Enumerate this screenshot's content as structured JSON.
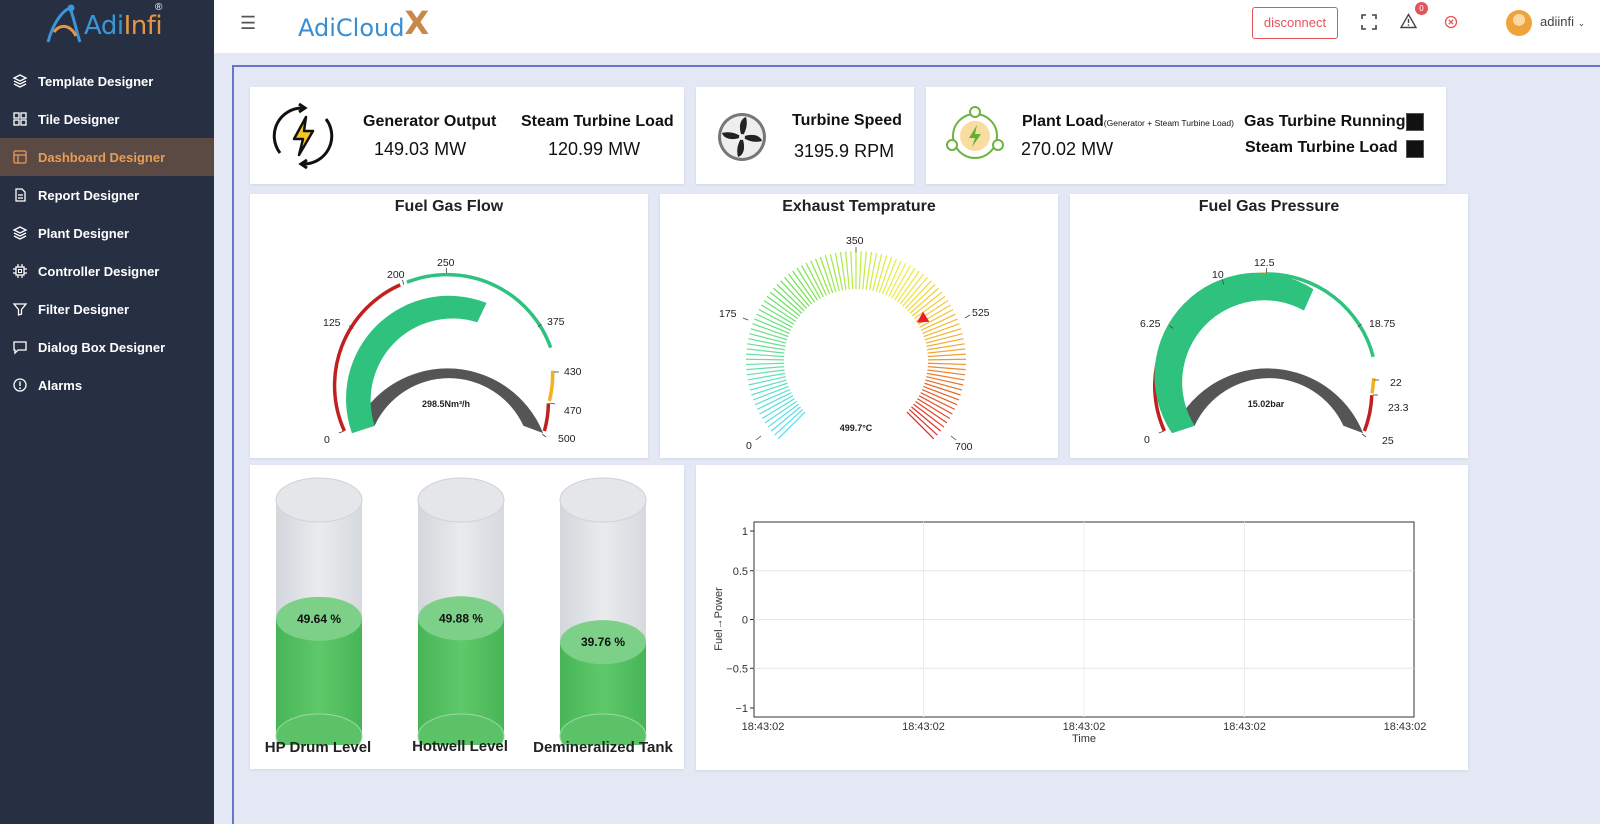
{
  "sidebar": {
    "brand": {
      "main": "Adi",
      "accent": "Infi",
      "mark": "®"
    },
    "items": [
      {
        "label": "Template Designer",
        "icon": "layers-icon"
      },
      {
        "label": "Tile Designer",
        "icon": "grid-icon"
      },
      {
        "label": "Dashboard Designer",
        "icon": "dashboard-icon",
        "active": true
      },
      {
        "label": "Report Designer",
        "icon": "document-icon"
      },
      {
        "label": "Plant Designer",
        "icon": "layers-icon"
      },
      {
        "label": "Controller Designer",
        "icon": "chip-icon"
      },
      {
        "label": "Filter Designer",
        "icon": "filter-icon"
      },
      {
        "label": "Dialog Box Designer",
        "icon": "chat-icon"
      },
      {
        "label": "Alarms",
        "icon": "alert-circle-icon"
      }
    ]
  },
  "topbar": {
    "logo": "AdiCloud",
    "logo_x": "X",
    "disconnect_label": "disconnect",
    "alarm_count": "0",
    "user": "adiinfi"
  },
  "kpi": {
    "generator_output": {
      "label": "Generator Output",
      "value": "149.03",
      "unit": "MW"
    },
    "steam_turbine_load": {
      "label": "Steam Turbine Load",
      "value": "120.99",
      "unit": "MW"
    },
    "turbine_speed": {
      "label": "Turbine Speed",
      "value": "3195.9",
      "unit": "RPM"
    },
    "plant_load": {
      "label": "Plant Load",
      "sub": "(Generator + Steam Turbine Load)",
      "value": "270.02",
      "unit": "MW"
    },
    "gas_turbine_running": {
      "label": "Gas Turbine Running :"
    },
    "steam_turbine_load_status": {
      "label": "Steam Turbine Load  :"
    }
  },
  "gauges": {
    "fuel_gas_flow": {
      "title": "Fuel Gas Flow",
      "value": 298.5,
      "display": "298.5Nm³/h",
      "min": 0,
      "max": 500,
      "ticks": [
        "0",
        "125",
        "200",
        "250",
        "375",
        "430",
        "470",
        "500"
      ]
    },
    "exhaust_temperature": {
      "title": "Exhaust Temprature",
      "value": 499.7,
      "display": "499.7°C",
      "min": 0,
      "max": 700,
      "ticks": [
        "0",
        "175",
        "350",
        "525",
        "700"
      ]
    },
    "fuel_gas_pressure": {
      "title": "Fuel Gas Pressure",
      "value": 15.02,
      "display": "15.02bar",
      "min": 0,
      "max": 25,
      "ticks": [
        "0",
        "6.25",
        "10",
        "12.5",
        "18.75",
        "22",
        "23.3",
        "25"
      ]
    }
  },
  "tanks": [
    {
      "label": "HP Drum Level",
      "pct_text": "49.64 %",
      "level": 0.4964
    },
    {
      "label": "Hotwell Level",
      "pct_text": "49.88 %",
      "level": 0.4988
    },
    {
      "label": "Demineralized Tank",
      "pct_text": "39.76 %",
      "level": 0.3976
    }
  ],
  "chart_data": {
    "type": "line",
    "series": [],
    "x_ticks": [
      "18:43:02",
      "18:43:02",
      "18:43:02",
      "18:43:02",
      "18:43:02"
    ],
    "y_ticks": [
      "1",
      "0.5",
      "0",
      "−0.5",
      "−1"
    ],
    "ylim": [
      -1,
      1
    ],
    "xlabel": "Time",
    "ylabel": "Fuel→Power",
    "grid": true
  }
}
